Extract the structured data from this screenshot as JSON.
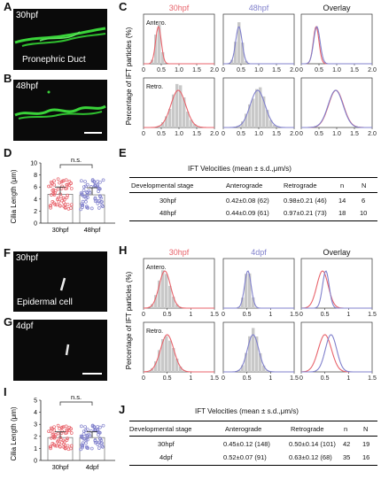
{
  "panels": {
    "A": {
      "letter": "A",
      "stage": "30hpf",
      "tissue": "Pronephric Duct"
    },
    "B": {
      "letter": "B",
      "stage": "48hpf"
    },
    "C": {
      "letter": "C",
      "col_titles": [
        "30hpf",
        "48hpf",
        "Overlay"
      ],
      "row_labels": [
        "Antero.",
        "Retro."
      ],
      "ylabel": "Percentage of IFT particles (%)",
      "xticks": [
        "0",
        "0.5",
        "1.0",
        "1.5",
        "2.0"
      ]
    },
    "D": {
      "letter": "D",
      "ylabel": "Cilia Length (μm)",
      "sig": "n.s.",
      "yticks": [
        "0",
        "2",
        "4",
        "6",
        "8",
        "10"
      ],
      "groups": [
        "30hpf",
        "48hpf"
      ]
    },
    "E": {
      "letter": "E",
      "title": "IFT Velocities (mean ± s.d.,μm/s)",
      "headers": [
        "Developmental stage",
        "Anterograde",
        "Retrograde",
        "n",
        "N"
      ],
      "rows": [
        [
          "30hpf",
          "0.42±0.08 (62)",
          "0.98±0.21 (46)",
          "14",
          "6"
        ],
        [
          "48hpf",
          "0.44±0.09 (61)",
          "0.97±0.21 (73)",
          "18",
          "10"
        ]
      ]
    },
    "F": {
      "letter": "F",
      "stage": "30hpf",
      "tissue": "Epidermal cell"
    },
    "G": {
      "letter": "G",
      "stage": "4dpf"
    },
    "H": {
      "letter": "H",
      "col_titles": [
        "30hpf",
        "4dpf",
        "Overlay"
      ],
      "row_labels": [
        "Antero.",
        "Retro."
      ],
      "ylabel": "Percentage of IFT particles (%)",
      "xticks": [
        "0",
        "0.5",
        "1",
        "1.5"
      ]
    },
    "I": {
      "letter": "I",
      "ylabel": "Cilia Length (μm)",
      "sig": "n.s.",
      "yticks": [
        "0",
        "1",
        "2",
        "3",
        "4",
        "5"
      ],
      "groups": [
        "30hpf",
        "4dpf"
      ]
    },
    "J": {
      "letter": "J",
      "title": "IFT Velocities (mean ± s.d.,μm/s)",
      "headers": [
        "Developmental stage",
        "Anterograde",
        "Retrograde",
        "n",
        "N"
      ],
      "rows": [
        [
          "30hpf",
          "0.45±0.12 (148)",
          "0.50±0.14 (101)",
          "42",
          "19"
        ],
        [
          "4dpf",
          "0.52±0.07  (91)",
          "0.63±0.12  (68)",
          "35",
          "16"
        ]
      ]
    }
  },
  "colors": {
    "red": "#e8636b",
    "blue": "#8080cc",
    "hist": "#c8c8c8",
    "gfp": "#3ad43a"
  },
  "chart_data": [
    {
      "type": "bar",
      "panel": "C",
      "series": [
        {
          "condition": "30hpf",
          "direction": "anterograde",
          "mean": 0.42,
          "sd": 0.08,
          "n": 62
        },
        {
          "condition": "48hpf",
          "direction": "anterograde",
          "mean": 0.44,
          "sd": 0.09,
          "n": 61
        },
        {
          "condition": "30hpf",
          "direction": "retrograde",
          "mean": 0.98,
          "sd": 0.21,
          "n": 46
        },
        {
          "condition": "48hpf",
          "direction": "retrograde",
          "mean": 0.97,
          "sd": 0.21,
          "n": 73
        }
      ],
      "xlim": [
        0,
        2.0
      ],
      "xlabel": "",
      "ylabel": "Percentage of IFT particles (%)"
    },
    {
      "type": "bar",
      "panel": "D",
      "categories": [
        "30hpf",
        "48hpf"
      ],
      "values": [
        4.8,
        4.7
      ],
      "ylim": [
        0,
        10
      ],
      "ylabel": "Cilia Length (μm)"
    },
    {
      "type": "bar",
      "panel": "H",
      "series": [
        {
          "condition": "30hpf",
          "direction": "anterograde",
          "mean": 0.45,
          "sd": 0.12,
          "n": 148
        },
        {
          "condition": "4dpf",
          "direction": "anterograde",
          "mean": 0.52,
          "sd": 0.07,
          "n": 91
        },
        {
          "condition": "30hpf",
          "direction": "retrograde",
          "mean": 0.5,
          "sd": 0.14,
          "n": 101
        },
        {
          "condition": "4dpf",
          "direction": "retrograde",
          "mean": 0.63,
          "sd": 0.12,
          "n": 68
        }
      ],
      "xlim": [
        0,
        1.5
      ],
      "ylabel": "Percentage of IFT particles (%)"
    },
    {
      "type": "bar",
      "panel": "I",
      "categories": [
        "30hpf",
        "4dpf"
      ],
      "values": [
        1.9,
        1.9
      ],
      "ylim": [
        0,
        5
      ],
      "ylabel": "Cilia Length (μm)"
    }
  ]
}
